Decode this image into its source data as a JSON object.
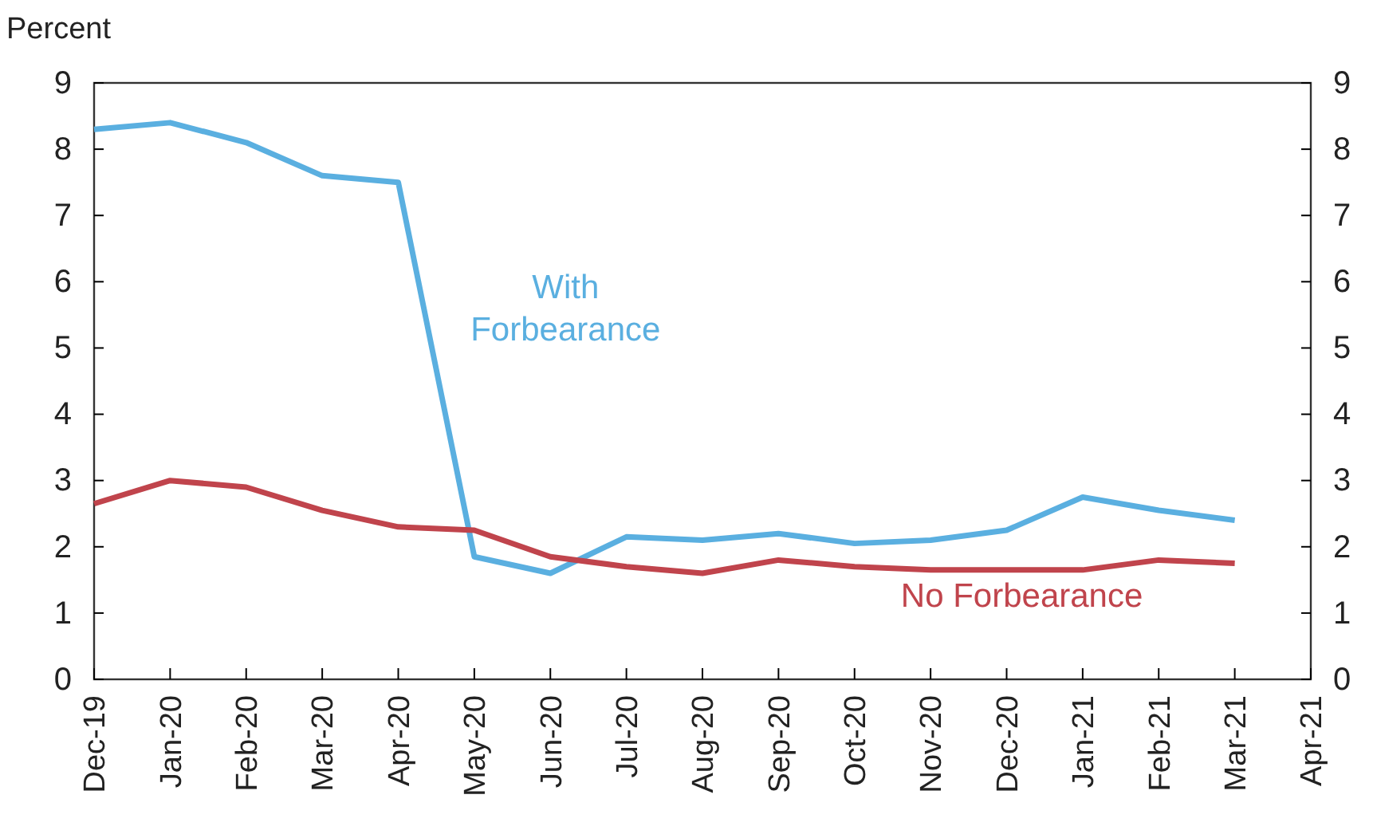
{
  "chart_data": {
    "type": "line",
    "ylabel": "Percent",
    "categories": [
      "Dec-19",
      "Jan-20",
      "Feb-20",
      "Mar-20",
      "Apr-20",
      "May-20",
      "Jun-20",
      "Jul-20",
      "Aug-20",
      "Sep-20",
      "Oct-20",
      "Nov-20",
      "Dec-20",
      "Jan-21",
      "Feb-21",
      "Mar-21",
      "Apr-21"
    ],
    "series": [
      {
        "name": "With Forbearance",
        "color": "#5aafe0",
        "values": [
          8.3,
          8.4,
          8.1,
          7.6,
          7.5,
          1.85,
          1.6,
          2.15,
          2.1,
          2.2,
          2.05,
          2.1,
          2.25,
          2.75,
          2.55,
          2.4,
          null
        ]
      },
      {
        "name": "No Forbearance",
        "color": "#c0444c",
        "values": [
          2.65,
          3.0,
          2.9,
          2.55,
          2.3,
          2.25,
          1.85,
          1.7,
          1.6,
          1.8,
          1.7,
          1.65,
          1.65,
          1.65,
          1.8,
          1.75,
          null
        ]
      }
    ],
    "ylim": [
      0,
      9
    ],
    "yticks": [
      0,
      1,
      2,
      3,
      4,
      5,
      6,
      7,
      8,
      9
    ],
    "y2lim": [
      0,
      9
    ],
    "y2ticks": [
      0,
      1,
      2,
      3,
      4,
      5,
      6,
      7,
      8,
      9
    ],
    "grid": false,
    "marker": "none",
    "line_style": "solid"
  }
}
